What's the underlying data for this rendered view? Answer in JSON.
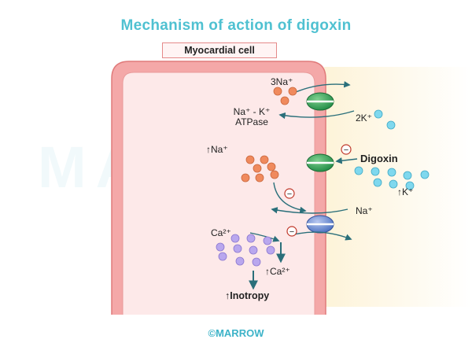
{
  "title": "Mechanism of action of digoxin",
  "cell_label": "Myocardial cell",
  "watermark": "MARROW",
  "footer": "©MARROW",
  "labels": {
    "na3": "3Na⁺",
    "atpase_line1": "Na⁺ - K⁺",
    "atpase_line2": "ATPase",
    "k2": "2K⁺",
    "up_na": "↑Na⁺",
    "digoxin": "Digoxin",
    "up_k": "↑K⁺",
    "na_exchanger": "Na⁺",
    "ca": "Ca²⁺",
    "up_ca": "↑Ca²⁺",
    "inotropy": "↑Inotropy"
  },
  "inhibition_symbol": "−",
  "colors": {
    "title": "#4fc1d1",
    "membrane": "#f1a4a4",
    "cytoplasm": "#fde8e8",
    "extracellular": "#fdf7e3",
    "sodium": "#f08a5d",
    "potassium": "#7fd8ee",
    "calcium": "#b9a7ee",
    "pump": "#3aa85a",
    "exchanger": "#6b8fd6",
    "arrow": "#2a6f7a",
    "inhibit": "#c0392b"
  }
}
